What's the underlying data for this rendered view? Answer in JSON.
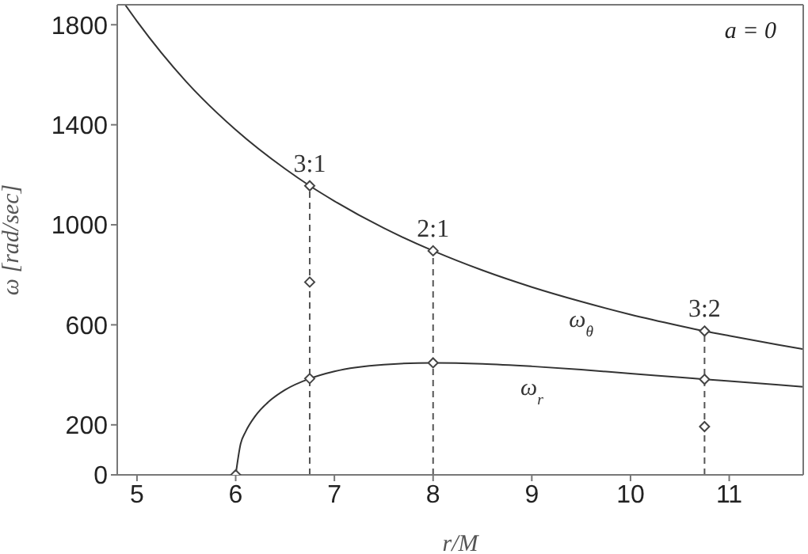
{
  "chart_data": {
    "type": "line",
    "xlabel": "r/M",
    "ylabel": "ω [rad/sec]",
    "xlim": [
      4.8,
      11.75
    ],
    "ylim": [
      0,
      1880
    ],
    "xticks": [
      5,
      6,
      7,
      8,
      9,
      10,
      11
    ],
    "yticks": [
      0,
      200,
      600,
      1000,
      1400,
      1800
    ],
    "legend": false,
    "series": [
      {
        "name": "ω$_{θ}$",
        "color": "#333333",
        "x": [
          4.88,
          5,
          5.5,
          6,
          6.5,
          6.75,
          7,
          7.5,
          8,
          8.5,
          9,
          9.5,
          10,
          10.5,
          10.75,
          11,
          11.5,
          11.75
        ],
        "values": [
          1880,
          1814,
          1572,
          1380,
          1224,
          1156,
          1095,
          987,
          896,
          818,
          751,
          693,
          641,
          596,
          575,
          556,
          520,
          503
        ]
      },
      {
        "name": "ω$_{r}$",
        "color": "#333333",
        "x": [
          6,
          6.05,
          6.1,
          6.2,
          6.35,
          6.5,
          6.75,
          7,
          7.5,
          8,
          8.5,
          9,
          9.5,
          10,
          10.5,
          10.75,
          11,
          11.5,
          11.75
        ],
        "values": [
          0,
          124,
          172,
          236,
          298,
          340,
          385,
          414,
          441,
          448,
          444,
          434,
          421,
          405,
          390,
          382,
          375,
          360,
          352
        ]
      },
      {
        "color": "#555555",
        "type": "line",
        "line_style": "dashed",
        "x": [
          6.75,
          6.75
        ],
        "values": [
          0,
          1156
        ]
      },
      {
        "color": "#555555",
        "type": "line",
        "line_style": "dashed",
        "x": [
          8,
          8
        ],
        "values": [
          0,
          896
        ]
      },
      {
        "color": "#555555",
        "type": "line",
        "line_style": "dashed",
        "x": [
          10.75,
          10.75
        ],
        "values": [
          0,
          575
        ]
      },
      {
        "color": "#444444",
        "type": "scatter",
        "marker": "diamond",
        "x": [
          6,
          6.75,
          6.75,
          6.75,
          8,
          8,
          10.75,
          10.75,
          10.75
        ],
        "values": [
          0,
          1156,
          771,
          385,
          896,
          448,
          575,
          382,
          193
        ]
      }
    ],
    "annotations": [
      {
        "text": "3:1",
        "x": 6.75,
        "y": 1156
      },
      {
        "text": "2:1",
        "x": 8,
        "y": 896
      },
      {
        "text": "3:2",
        "x": 10.75,
        "y": 575
      },
      "a = 0"
    ]
  }
}
